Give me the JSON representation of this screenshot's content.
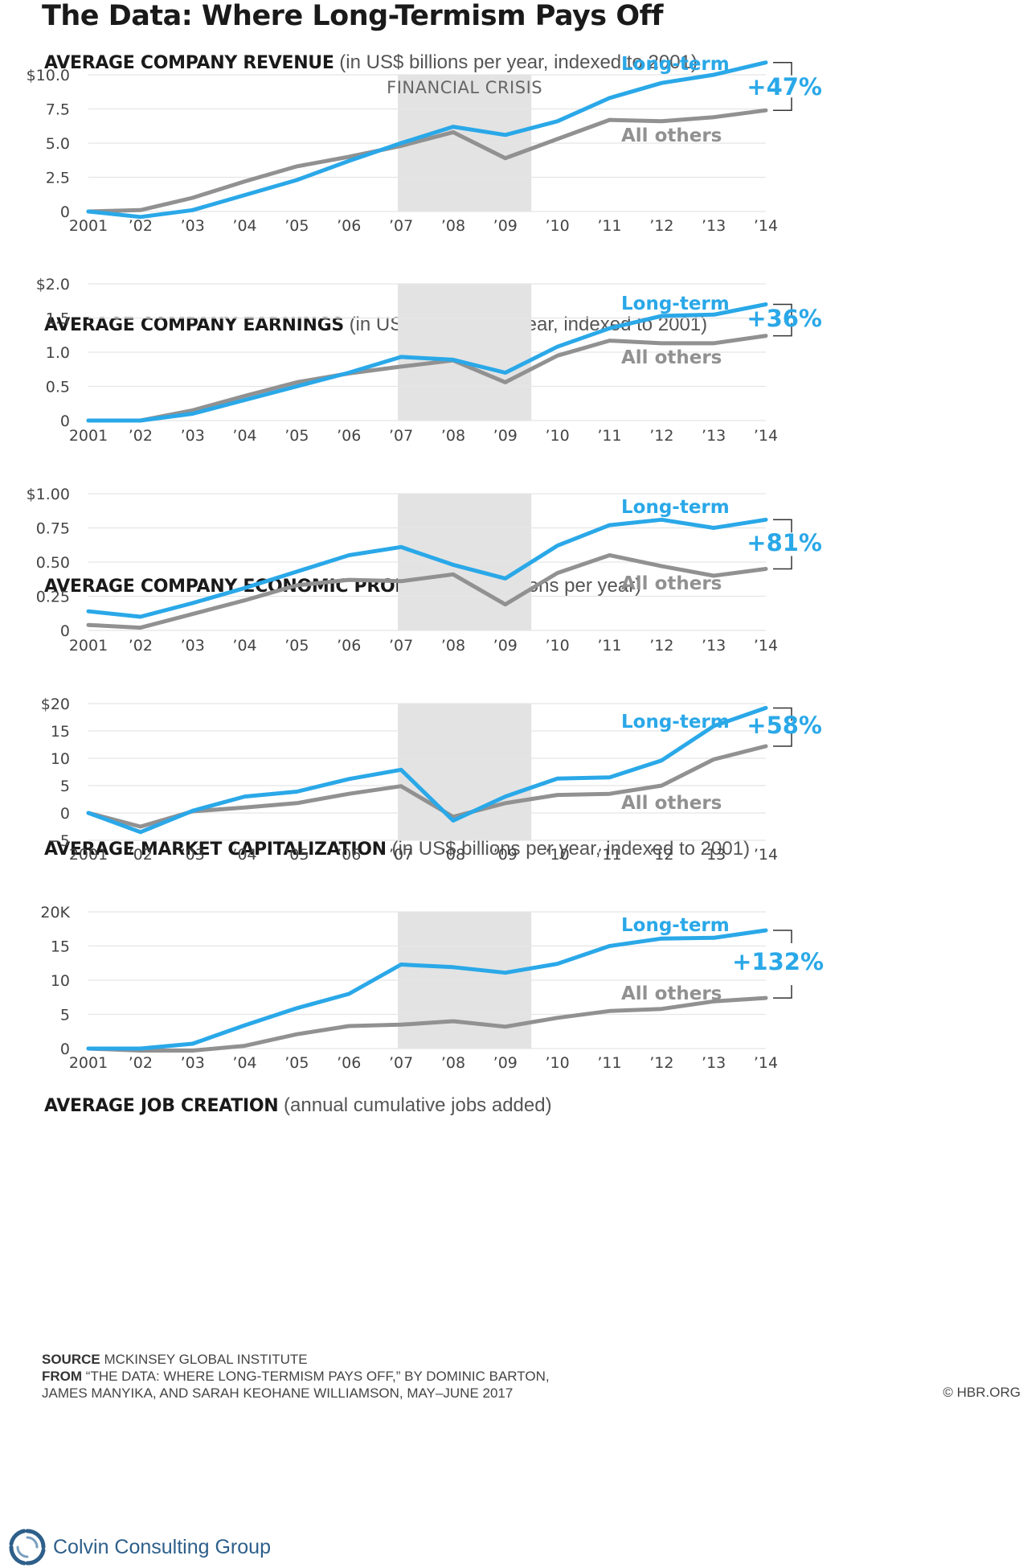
{
  "title": "The Data: Where Long-Termism Pays Off",
  "x_tick_labels": [
    "2001",
    "’02",
    "’03",
    "’04",
    "’05",
    "’06",
    "’07",
    "’08",
    "’09",
    "’10",
    "’11",
    "’12",
    "’13",
    "’14"
  ],
  "series_names": [
    "Long-term",
    "All others"
  ],
  "crisis_label": "FINANCIAL CRISIS",
  "colors": {
    "long_term": "#2aa8e8",
    "all_others": "#919191",
    "crisis_band": "#e3e3e3",
    "grid": "#e5e5e5"
  },
  "chart_data": [
    {
      "type": "line",
      "title": "AVERAGE COMPANY REVENUE",
      "subtitle": "(in US$ billions per year, indexed to 2001)",
      "x": [
        2001,
        2002,
        2003,
        2004,
        2005,
        2006,
        2007,
        2008,
        2009,
        2010,
        2011,
        2012,
        2013,
        2014
      ],
      "y_ticks": [
        "0",
        "2.5",
        "5.0",
        "7.5",
        "$10.0"
      ],
      "ylim": [
        0,
        10
      ],
      "series": [
        {
          "name": "Long-term",
          "values": [
            0,
            -0.4,
            0.1,
            1.2,
            2.3,
            3.7,
            5.0,
            6.2,
            5.6,
            6.6,
            8.3,
            9.4,
            10.0,
            10.9
          ]
        },
        {
          "name": "All others",
          "values": [
            0,
            0.1,
            1.0,
            2.2,
            3.3,
            4.0,
            4.8,
            5.8,
            3.9,
            5.3,
            6.7,
            6.6,
            6.9,
            7.4
          ]
        }
      ],
      "difference_label": "+47%",
      "crisis_band": [
        2007,
        2009.5
      ]
    },
    {
      "type": "line",
      "title": "AVERAGE COMPANY EARNINGS",
      "subtitle": "(in US$ billions per year, indexed to 2001)",
      "x": [
        2001,
        2002,
        2003,
        2004,
        2005,
        2006,
        2007,
        2008,
        2009,
        2010,
        2011,
        2012,
        2013,
        2014
      ],
      "y_ticks": [
        "0",
        "0.5",
        "1.0",
        "1.5",
        "$2.0"
      ],
      "ylim": [
        0,
        2
      ],
      "series": [
        {
          "name": "Long-term",
          "values": [
            0,
            0,
            0.1,
            0.3,
            0.5,
            0.7,
            0.93,
            0.89,
            0.7,
            1.08,
            1.35,
            1.53,
            1.55,
            1.7
          ]
        },
        {
          "name": "All others",
          "values": [
            0,
            0,
            0.15,
            0.36,
            0.56,
            0.69,
            0.79,
            0.88,
            0.56,
            0.95,
            1.17,
            1.13,
            1.13,
            1.24
          ]
        }
      ],
      "difference_label": "+36%",
      "crisis_band": [
        2007,
        2009.5
      ]
    },
    {
      "type": "line",
      "title": "AVERAGE COMPANY ECONOMIC PROFIT",
      "subtitle": "(in US$ billions per year)",
      "x": [
        2001,
        2002,
        2003,
        2004,
        2005,
        2006,
        2007,
        2008,
        2009,
        2010,
        2011,
        2012,
        2013,
        2014
      ],
      "y_ticks": [
        "0",
        "0.25",
        "0.50",
        "0.75",
        "$1.00"
      ],
      "ylim": [
        0,
        1
      ],
      "series": [
        {
          "name": "Long-term",
          "values": [
            0.14,
            0.1,
            0.2,
            0.31,
            0.43,
            0.55,
            0.61,
            0.48,
            0.38,
            0.62,
            0.77,
            0.81,
            0.75,
            0.81
          ]
        },
        {
          "name": "All others",
          "values": [
            0.04,
            0.02,
            0.12,
            0.22,
            0.33,
            0.37,
            0.36,
            0.41,
            0.19,
            0.42,
            0.55,
            0.47,
            0.4,
            0.45
          ]
        }
      ],
      "difference_label": "+81%",
      "crisis_band": [
        2007,
        2009.5
      ]
    },
    {
      "type": "line",
      "title": "AVERAGE MARKET CAPITALIZATION",
      "subtitle": "(in US$ billions per year, indexed to 2001)",
      "x": [
        2001,
        2002,
        2003,
        2004,
        2005,
        2006,
        2007,
        2008,
        2009,
        2010,
        2011,
        2012,
        2013,
        2014
      ],
      "y_ticks": [
        "−5",
        "0",
        "5",
        "10",
        "15",
        "$20"
      ],
      "ylim": [
        -5,
        20
      ],
      "series": [
        {
          "name": "Long-term",
          "values": [
            0,
            -3.5,
            0.4,
            3.0,
            3.9,
            6.2,
            7.9,
            -1.4,
            3.0,
            6.3,
            6.5,
            9.6,
            15.9,
            19.2
          ]
        },
        {
          "name": "All others",
          "values": [
            0,
            -2.5,
            0.3,
            1.0,
            1.8,
            3.5,
            4.9,
            -0.7,
            1.8,
            3.3,
            3.5,
            5.0,
            9.8,
            12.2
          ]
        }
      ],
      "difference_label": "+58%",
      "crisis_band": [
        2007,
        2009.5
      ]
    },
    {
      "type": "line",
      "title": "AVERAGE JOB CREATION",
      "subtitle": "(annual cumulative jobs added)",
      "x": [
        2001,
        2002,
        2003,
        2004,
        2005,
        2006,
        2007,
        2008,
        2009,
        2010,
        2011,
        2012,
        2013,
        2014
      ],
      "y_ticks": [
        "0",
        "5",
        "10",
        "15",
        "20K"
      ],
      "ylim": [
        0,
        20
      ],
      "series": [
        {
          "name": "Long-term",
          "values": [
            0,
            0,
            0.7,
            3.4,
            5.9,
            8.0,
            12.3,
            11.9,
            11.1,
            12.4,
            15.0,
            16.1,
            16.2,
            17.3
          ]
        },
        {
          "name": "All others",
          "values": [
            0,
            -0.3,
            -0.3,
            0.4,
            2.1,
            3.3,
            3.5,
            4.0,
            3.2,
            4.5,
            5.5,
            5.8,
            6.9,
            7.4
          ]
        }
      ],
      "difference_label": "+132%",
      "crisis_band": [
        2007,
        2009.5
      ]
    }
  ],
  "footer": {
    "source_label": "SOURCE",
    "source_text": "MCKINSEY GLOBAL INSTITUTE",
    "from_label": "FROM",
    "from_text_line1": "“THE DATA: WHERE LONG-TERMISM PAYS OFF,” BY DOMINIC BARTON,",
    "from_text_line2": "JAMES MANYIKA, AND SARAH KEOHANE WILLIAMSON, MAY–JUNE 2017",
    "copyright": "© HBR.ORG"
  },
  "brand": {
    "name": "Colvin Consulting Group",
    "icon": "colvin-swirl-logo"
  }
}
